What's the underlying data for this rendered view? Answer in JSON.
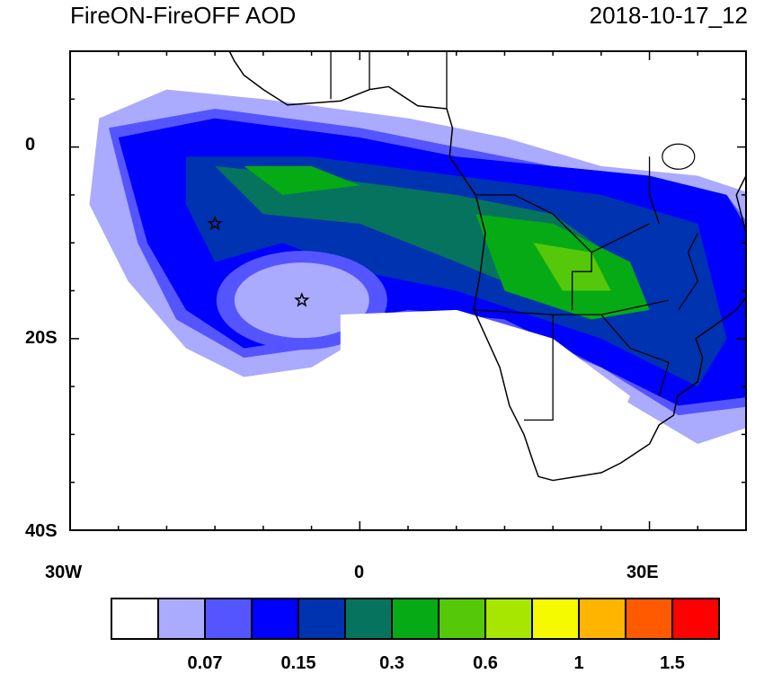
{
  "title_left": "FireON-FireOFF AOD",
  "title_right": "2018-10-17_12",
  "map": {
    "extent": {
      "lon": [
        -30,
        40
      ],
      "lat": [
        -40,
        10
      ]
    },
    "lon_labels": [
      "30W",
      "0",
      "30E"
    ],
    "lat_labels": [
      "0",
      "20S",
      "40S"
    ],
    "markers": [
      {
        "type": "star",
        "lon": -15,
        "lat": -8
      },
      {
        "type": "star",
        "lon": -6,
        "lat": -16
      }
    ]
  },
  "colorbar": {
    "colors": [
      "#ffffff",
      "#aaaaff",
      "#5555ff",
      "#0000ff",
      "#0033b0",
      "#06735f",
      "#06aa14",
      "#55c80a",
      "#a6e600",
      "#f5fa00",
      "#ffb400",
      "#ff5a00",
      "#ff0000"
    ],
    "labels": [
      "0.07",
      "0.15",
      "0.3",
      "0.6",
      "1",
      "1.5"
    ]
  }
}
